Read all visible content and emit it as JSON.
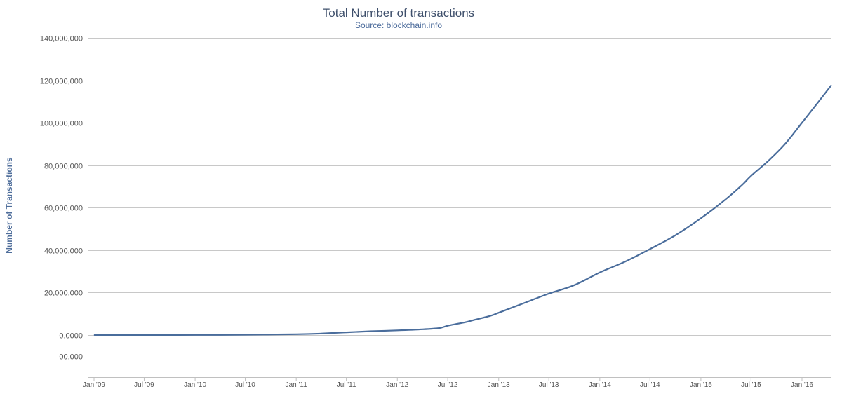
{
  "chart_data": {
    "type": "line",
    "title": "Total Number of transactions",
    "subtitle": "Source: blockchain.info",
    "ylabel": "Number of Transactions",
    "xlabel": "",
    "ylim": [
      -20000000,
      140000000
    ],
    "y_ticks": [
      {
        "value": 140000000,
        "label": "140,000,000"
      },
      {
        "value": 120000000,
        "label": "120,000,000"
      },
      {
        "value": 100000000,
        "label": "100,000,000"
      },
      {
        "value": 80000000,
        "label": "80,000,000"
      },
      {
        "value": 60000000,
        "label": "60,000,000"
      },
      {
        "value": 40000000,
        "label": "40,000,000"
      },
      {
        "value": 20000000,
        "label": "20,000,000"
      },
      {
        "value": 0,
        "label": "0.0000"
      }
    ],
    "y_extra_labels": [
      {
        "value": -10000000,
        "label": "00,000"
      }
    ],
    "x_ticks": [
      {
        "date": "2009-01-01",
        "label": "Jan '09"
      },
      {
        "date": "2009-07-01",
        "label": "Jul '09"
      },
      {
        "date": "2010-01-01",
        "label": "Jan '10"
      },
      {
        "date": "2010-07-01",
        "label": "Jul '10"
      },
      {
        "date": "2011-01-01",
        "label": "Jan '11"
      },
      {
        "date": "2011-07-01",
        "label": "Jul '11"
      },
      {
        "date": "2012-01-01",
        "label": "Jan '12"
      },
      {
        "date": "2012-07-01",
        "label": "Jul '12"
      },
      {
        "date": "2013-01-01",
        "label": "Jan '13"
      },
      {
        "date": "2013-07-01",
        "label": "Jul '13"
      },
      {
        "date": "2014-01-01",
        "label": "Jan '14"
      },
      {
        "date": "2014-07-01",
        "label": "Jul '14"
      },
      {
        "date": "2015-01-01",
        "label": "Jan '15"
      },
      {
        "date": "2015-07-01",
        "label": "Jul '15"
      },
      {
        "date": "2016-01-01",
        "label": "Jan '16"
      }
    ],
    "grid": true,
    "legend": "none",
    "series": [
      {
        "color": "#4a6d9c",
        "points": [
          {
            "x": "2009-01-03",
            "y": 0
          },
          {
            "x": "2009-07-01",
            "y": 10000
          },
          {
            "x": "2010-01-01",
            "y": 50000
          },
          {
            "x": "2010-07-01",
            "y": 150000
          },
          {
            "x": "2011-01-01",
            "y": 400000
          },
          {
            "x": "2011-04-01",
            "y": 700000
          },
          {
            "x": "2011-07-01",
            "y": 1300000
          },
          {
            "x": "2011-10-01",
            "y": 1800000
          },
          {
            "x": "2012-01-01",
            "y": 2200000
          },
          {
            "x": "2012-04-01",
            "y": 2700000
          },
          {
            "x": "2012-06-01",
            "y": 3300000
          },
          {
            "x": "2012-07-01",
            "y": 4400000
          },
          {
            "x": "2012-09-01",
            "y": 6000000
          },
          {
            "x": "2012-10-01",
            "y": 7000000
          },
          {
            "x": "2012-12-01",
            "y": 9000000
          },
          {
            "x": "2013-01-01",
            "y": 10500000
          },
          {
            "x": "2013-04-01",
            "y": 15000000
          },
          {
            "x": "2013-07-01",
            "y": 19500000
          },
          {
            "x": "2013-10-01",
            "y": 23500000
          },
          {
            "x": "2014-01-01",
            "y": 29500000
          },
          {
            "x": "2014-04-01",
            "y": 34500000
          },
          {
            "x": "2014-07-01",
            "y": 40500000
          },
          {
            "x": "2014-10-01",
            "y": 47000000
          },
          {
            "x": "2015-01-01",
            "y": 55000000
          },
          {
            "x": "2015-04-01",
            "y": 64000000
          },
          {
            "x": "2015-06-01",
            "y": 71000000
          },
          {
            "x": "2015-07-01",
            "y": 75000000
          },
          {
            "x": "2015-09-01",
            "y": 82000000
          },
          {
            "x": "2015-11-01",
            "y": 90000000
          },
          {
            "x": "2016-01-01",
            "y": 100000000
          },
          {
            "x": "2016-03-01",
            "y": 110000000
          },
          {
            "x": "2016-04-15",
            "y": 117500000
          }
        ]
      }
    ]
  }
}
